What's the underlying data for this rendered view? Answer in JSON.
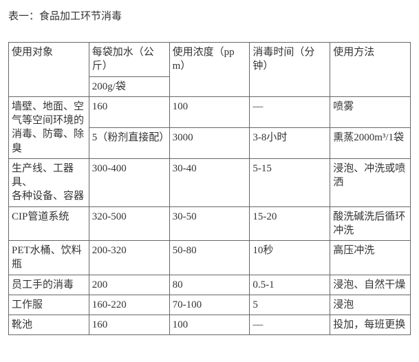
{
  "title": "表一：食品加工环节消毒",
  "header": {
    "target": "使用对象",
    "water": "每袋加水（公斤）",
    "bagspec": "200g/袋",
    "conc": "使用浓度（ppm）",
    "time": "消毒时间（分钟）",
    "method": "使用方法"
  },
  "rows": {
    "r1": {
      "target": "墙壁、地面、空气等空间环境的消毒、防霉、除臭",
      "water": "160",
      "conc": "100",
      "time": "—",
      "method": "喷雾"
    },
    "r2": {
      "water": "5（粉剂直接配）",
      "conc": "3000",
      "time": "3-8小时",
      "method": "熏蒸2000m³/1袋"
    },
    "r3": {
      "target": "生产线、工器具、\n各种设备、容器",
      "water": "300-400",
      "conc": "30-40",
      "time": "5-15",
      "method": "浸泡、冲洗或喷洒"
    },
    "r4": {
      "target": "CIP管道系统",
      "water": "320-500",
      "conc": "30-50",
      "time": "15-20",
      "method": "酸洗碱洗后循环冲洗"
    },
    "r5": {
      "target": "PET水桶、饮料瓶",
      "water": "200-320",
      "conc": "50-80",
      "time": "10秒",
      "method": "高压冲洗"
    },
    "r6": {
      "target": "员工手的消毒",
      "water": "200",
      "conc": "80",
      "time": "0.5-1",
      "method": "浸泡、自然干燥"
    },
    "r7": {
      "target": "工作服",
      "water": "160-220",
      "conc": "70-100",
      "time": "5",
      "method": "浸泡"
    },
    "r8": {
      "target": "靴池",
      "water": "160",
      "conc": "100",
      "time": "—",
      "method": "投加，每班更换"
    }
  }
}
